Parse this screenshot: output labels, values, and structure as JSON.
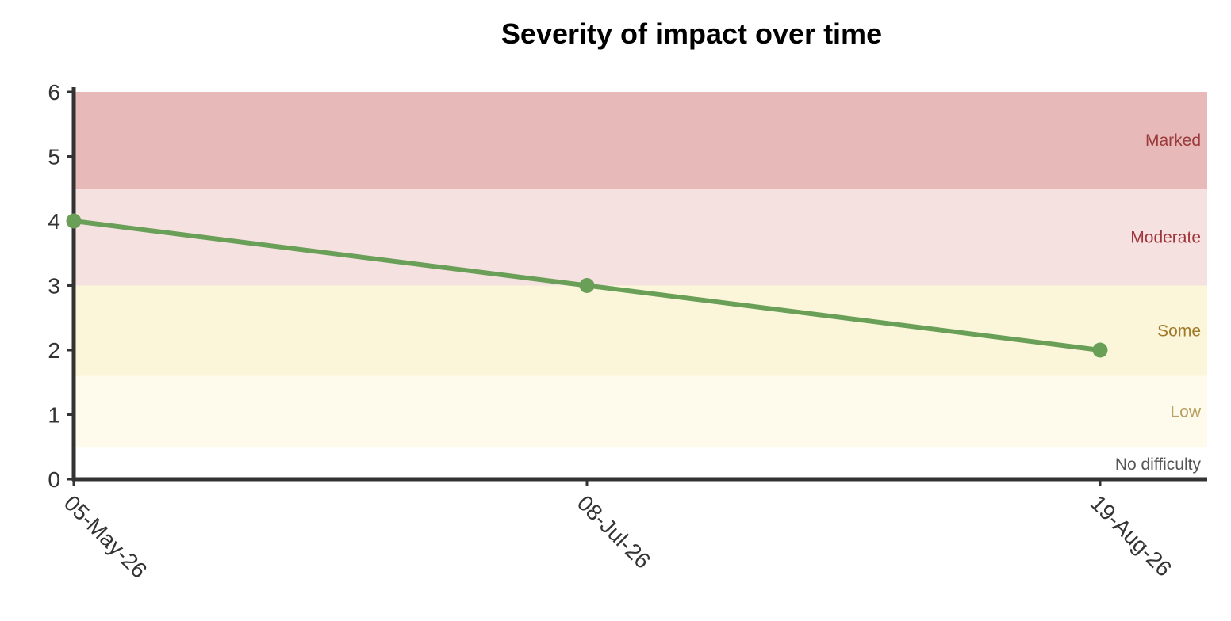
{
  "chart_data": {
    "type": "line",
    "title": "Severity of impact over time",
    "xlabel": "",
    "ylabel": "",
    "x": [
      "05-May-26",
      "08-Jul-26",
      "19-Aug-26"
    ],
    "ylim": [
      0,
      6
    ],
    "yticks": [
      0,
      1,
      2,
      3,
      4,
      5,
      6
    ],
    "grid": false,
    "series": [
      {
        "values": [
          4,
          3,
          2
        ],
        "color": "#6a9f58"
      }
    ],
    "bands": [
      {
        "label": "No difficulty",
        "from": 0,
        "to": 0.5,
        "color": "#ffffff",
        "label_color": "#555555"
      },
      {
        "label": "Low",
        "from": 0.5,
        "to": 1.6,
        "color": "#fefbec",
        "label_color": "#b8a060"
      },
      {
        "label": "Some",
        "from": 1.6,
        "to": 3,
        "color": "#fbf6da",
        "label_color": "#a07a2a"
      },
      {
        "label": "Moderate",
        "from": 3,
        "to": 4.5,
        "color": "#f6e1e1",
        "label_color": "#a0343a"
      },
      {
        "label": "Marked",
        "from": 4.5,
        "to": 6,
        "color": "#e8b9b9",
        "label_color": "#9a3a3a"
      }
    ]
  }
}
